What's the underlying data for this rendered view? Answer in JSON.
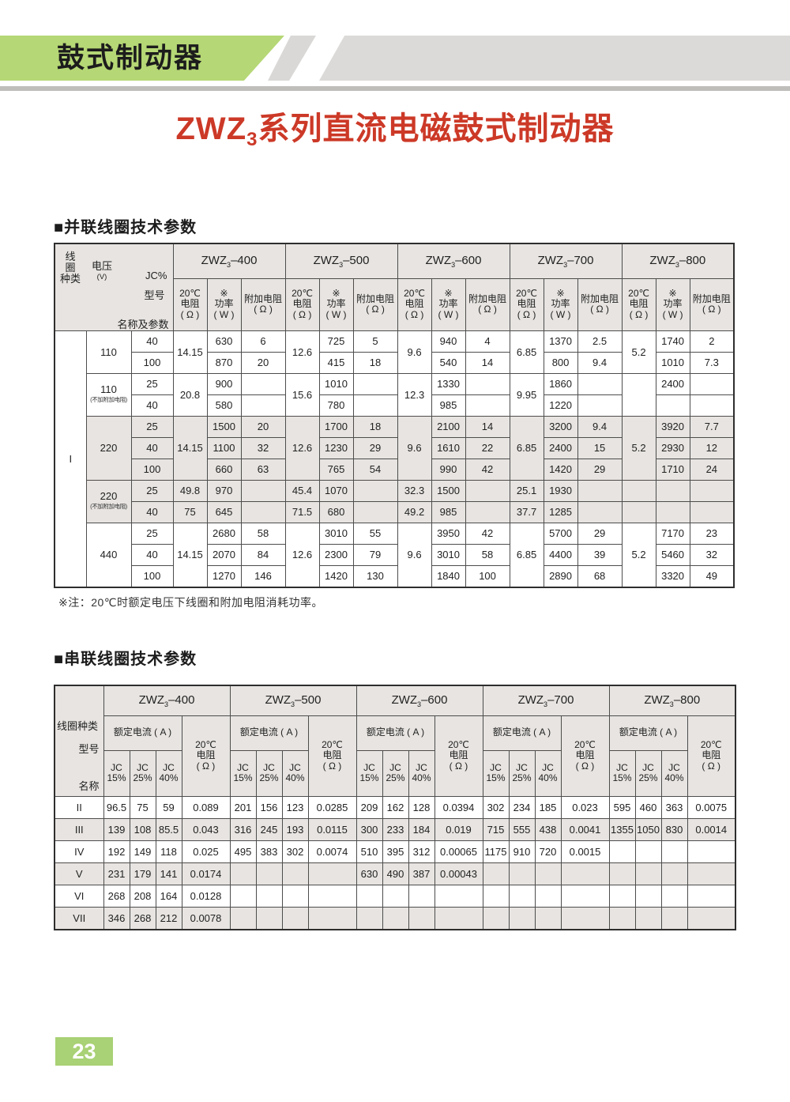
{
  "banner": {
    "title": "鼓式制动器"
  },
  "page_title": {
    "base": "ZWZ",
    "sub": "3",
    "rest": "系列直流电磁鼓式制动器"
  },
  "sections": {
    "parallel_title": "■并联线圈技术参数",
    "series_title": "■串联线圈技术参数"
  },
  "note": "※注：20℃时额定电压下线圈和附加电阻消耗功率。",
  "page_number": "23",
  "colors": {
    "accent_green": "#b5d775",
    "title_red": "#cc3927",
    "header_gray": "#e7e4e1"
  },
  "models": [
    {
      "base": "ZWZ",
      "sub": "3",
      "num": "–400"
    },
    {
      "base": "ZWZ",
      "sub": "3",
      "num": "–500"
    },
    {
      "base": "ZWZ",
      "sub": "3",
      "num": "–600"
    },
    {
      "base": "ZWZ",
      "sub": "3",
      "num": "–700"
    },
    {
      "base": "ZWZ",
      "sub": "3",
      "num": "–800"
    }
  ],
  "t1": {
    "corner": {
      "model": "型号",
      "name": "名称及参数",
      "coil": "线\n圈\n种类",
      "voltage": "电压",
      "voltage_unit": "(V)",
      "jc": "JC%"
    },
    "sub": {
      "res": "20℃\n电阻\n( Ω )",
      "power": "※\n功率\n( W )",
      "added": "附加电阻\n( Ω )"
    },
    "rows": [
      {
        "cells": [
          {
            "v": "I",
            "rs": 12,
            "cls": "kindcell"
          },
          {
            "v": "110",
            "rs": 2,
            "cls": "vcell"
          },
          "40",
          {
            "v": "14.15",
            "rs": 2
          },
          "630",
          "6",
          {
            "v": "12.6",
            "rs": 2
          },
          "725",
          "5",
          {
            "v": "9.6",
            "rs": 2
          },
          "940",
          "4",
          {
            "v": "6.85",
            "rs": 2
          },
          "1370",
          "2.5",
          {
            "v": "5.2",
            "rs": 2
          },
          "1740",
          "2"
        ]
      },
      {
        "cells": [
          "100",
          "870",
          "20",
          "415",
          "18",
          "540",
          "14",
          "800",
          "9.4",
          "1010",
          "7.3"
        ]
      },
      {
        "cells": [
          {
            "v": "110",
            "sub": "(不加附加电阻)",
            "rs": 2,
            "cls": "vcell"
          },
          "25",
          {
            "v": "20.8",
            "rs": 2,
            "cls": "vb"
          },
          "900",
          "",
          {
            "v": "15.6",
            "rs": 2,
            "cls": "vb"
          },
          "1010",
          "",
          {
            "v": "12.3",
            "rs": 2,
            "cls": "vb"
          },
          "1330",
          "",
          {
            "v": "9.95",
            "rs": 2,
            "cls": "vb"
          },
          "1860",
          "",
          {
            "v": "",
            "rs": 2
          },
          "2400",
          ""
        ]
      },
      {
        "cells": [
          "40",
          "580",
          "",
          "780",
          "",
          "985",
          "",
          "1220",
          "",
          "",
          ""
        ]
      },
      {
        "cls": "band",
        "cells": [
          {
            "v": "220",
            "rs": 3,
            "cls": "vcell"
          },
          "25",
          {
            "v": "14.15",
            "rs": 3
          },
          "1500",
          "20",
          {
            "v": "12.6",
            "rs": 3
          },
          "1700",
          "18",
          {
            "v": "9.6",
            "rs": 3
          },
          "2100",
          "14",
          {
            "v": "6.85",
            "rs": 3
          },
          "3200",
          "9.4",
          {
            "v": "5.2",
            "rs": 3
          },
          "3920",
          "7.7"
        ]
      },
      {
        "cls": "band",
        "cells": [
          "40",
          "1100",
          "32",
          "1230",
          "29",
          "1610",
          "22",
          "2400",
          "15",
          "2930",
          "12"
        ]
      },
      {
        "cls": "band",
        "cells": [
          "100",
          "660",
          "63",
          "765",
          "54",
          "990",
          "42",
          "1420",
          "29",
          "1710",
          "24"
        ]
      },
      {
        "cls": "band",
        "cells": [
          {
            "v": "220",
            "sub": "(不加附加电阻)",
            "rs": 2,
            "cls": "vcell"
          },
          "25",
          "49.8",
          "970",
          "",
          "45.4",
          "1070",
          "",
          "32.3",
          "1500",
          "",
          "25.1",
          "1930",
          "",
          "",
          "",
          ""
        ]
      },
      {
        "cls": "band",
        "cells": [
          "40",
          "75",
          "645",
          "",
          "71.5",
          "680",
          "",
          "49.2",
          "985",
          "",
          "37.7",
          "1285",
          "",
          "",
          "",
          ""
        ]
      },
      {
        "cells": [
          {
            "v": "440",
            "rs": 3,
            "cls": "vcell"
          },
          "25",
          {
            "v": "14.15",
            "rs": 3
          },
          "2680",
          "58",
          {
            "v": "12.6",
            "rs": 3
          },
          "3010",
          "55",
          {
            "v": "9.6",
            "rs": 3
          },
          "3950",
          "42",
          {
            "v": "6.85",
            "rs": 3
          },
          "5700",
          "29",
          {
            "v": "5.2",
            "rs": 3
          },
          "7170",
          "23"
        ]
      },
      {
        "cells": [
          "40",
          "2070",
          "84",
          "2300",
          "79",
          "3010",
          "58",
          "4400",
          "39",
          "5460",
          "32"
        ]
      },
      {
        "cells": [
          "100",
          "1270",
          "146",
          "1420",
          "130",
          "1840",
          "100",
          "2890",
          "68",
          "3320",
          "49"
        ]
      }
    ]
  },
  "t2": {
    "corner": {
      "model": "型号",
      "name": "名称",
      "coil": "线圈种类"
    },
    "current_header": "额定电流 ( A )",
    "res_header": "20℃\n电阻\n( Ω )",
    "jc_headers": [
      "JC\n15%",
      "JC\n25%",
      "JC\n40%"
    ],
    "rows": [
      {
        "cells": [
          "II",
          "96.5",
          "75",
          "59",
          "0.089",
          "201",
          "156",
          "123",
          "0.0285",
          "209",
          "162",
          "128",
          "0.0394",
          "302",
          "234",
          "185",
          "0.023",
          "595",
          "460",
          "363",
          "0.0075"
        ]
      },
      {
        "cls": "band",
        "cells": [
          "III",
          "139",
          "108",
          "85.5",
          "0.043",
          "316",
          "245",
          "193",
          "0.0115",
          "300",
          "233",
          "184",
          "0.019",
          "715",
          "555",
          "438",
          "0.0041",
          "1355",
          "1050",
          "830",
          "0.0014"
        ]
      },
      {
        "cells": [
          "IV",
          "192",
          "149",
          "118",
          "0.025",
          "495",
          "383",
          "302",
          "0.0074",
          "510",
          "395",
          "312",
          "0.00065",
          "1175",
          "910",
          "720",
          "0.0015",
          "",
          "",
          "",
          ""
        ]
      },
      {
        "cls": "band",
        "cells": [
          "V",
          "231",
          "179",
          "141",
          "0.0174",
          "",
          "",
          "",
          "",
          "630",
          "490",
          "387",
          "0.00043",
          "",
          "",
          "",
          "",
          "",
          "",
          "",
          ""
        ]
      },
      {
        "cells": [
          "VI",
          "268",
          "208",
          "164",
          "0.0128",
          "",
          "",
          "",
          "",
          "",
          "",
          "",
          "",
          "",
          "",
          "",
          "",
          "",
          "",
          "",
          ""
        ]
      },
      {
        "cls": "band",
        "cells": [
          "VII",
          "346",
          "268",
          "212",
          "0.0078",
          "",
          "",
          "",
          "",
          "",
          "",
          "",
          "",
          "",
          "",
          "",
          "",
          "",
          "",
          "",
          ""
        ]
      }
    ]
  }
}
